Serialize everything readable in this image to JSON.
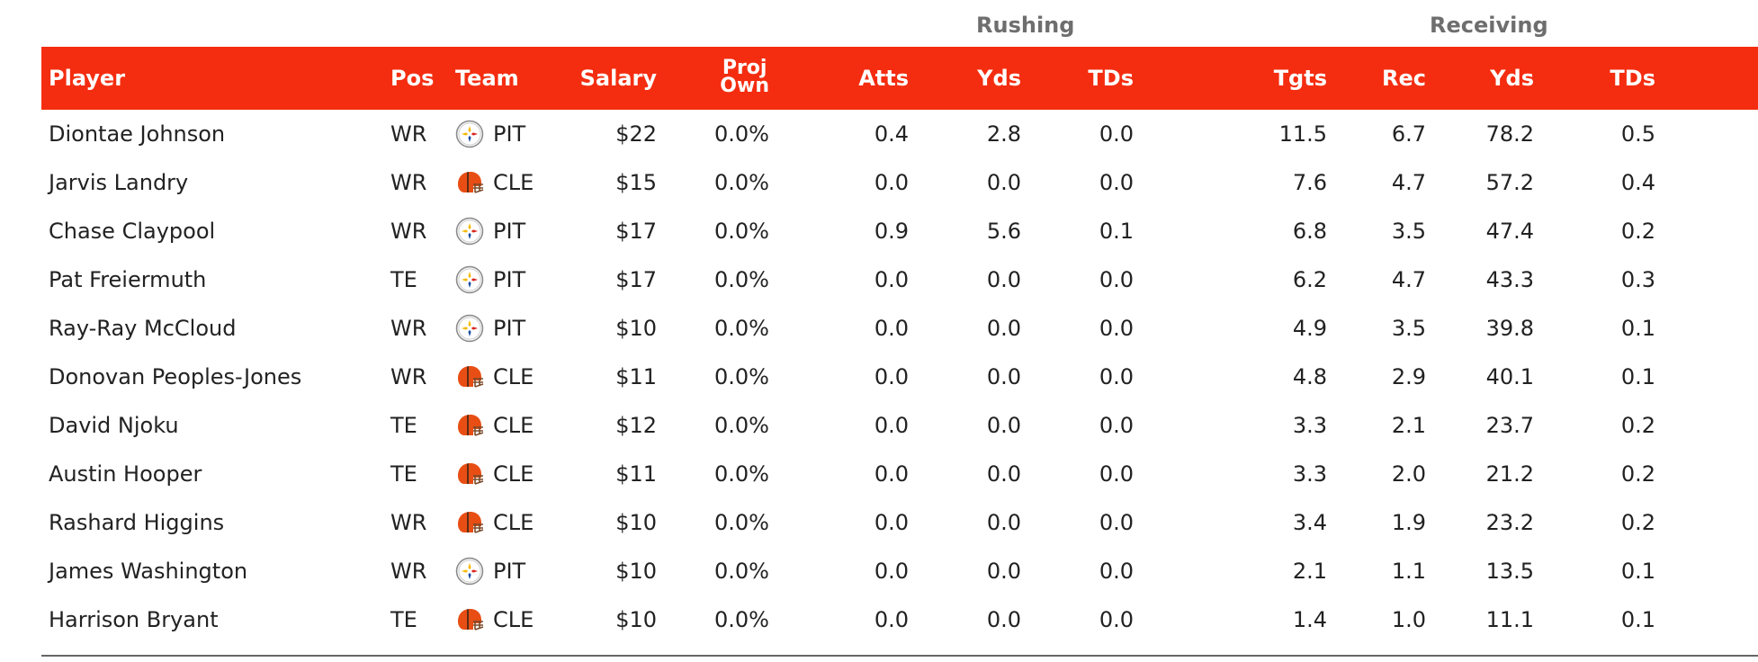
{
  "groups": {
    "rushing": "Rushing",
    "receiving": "Receiving"
  },
  "columns": {
    "player": "Player",
    "pos": "Pos",
    "team": "Team",
    "salary": "Salary",
    "proj_own_line1": "Proj",
    "proj_own_line2": "Own",
    "rush_atts": "Atts",
    "rush_yds": "Yds",
    "rush_tds": "TDs",
    "tgts": "Tgts",
    "rec": "Rec",
    "rec_yds": "Yds",
    "rec_tds": "TDs"
  },
  "colors": {
    "header_bg": "#f42d10",
    "group_label": "#6e6e6e",
    "steelers_logo_bg": "#f2f2f2",
    "browns_helmet": "#e84e14"
  },
  "team_icons": {
    "PIT": "steelers-logo-icon",
    "CLE": "browns-helmet-icon"
  },
  "rows": [
    {
      "player": "Diontae Johnson",
      "pos": "WR",
      "team": "PIT",
      "salary": "$22",
      "proj_own": "0.0%",
      "rush_atts": "0.4",
      "rush_yds": "2.8",
      "rush_tds": "0.0",
      "tgts": "11.5",
      "rec": "6.7",
      "rec_yds": "78.2",
      "rec_tds": "0.5"
    },
    {
      "player": "Jarvis Landry",
      "pos": "WR",
      "team": "CLE",
      "salary": "$15",
      "proj_own": "0.0%",
      "rush_atts": "0.0",
      "rush_yds": "0.0",
      "rush_tds": "0.0",
      "tgts": "7.6",
      "rec": "4.7",
      "rec_yds": "57.2",
      "rec_tds": "0.4"
    },
    {
      "player": "Chase Claypool",
      "pos": "WR",
      "team": "PIT",
      "salary": "$17",
      "proj_own": "0.0%",
      "rush_atts": "0.9",
      "rush_yds": "5.6",
      "rush_tds": "0.1",
      "tgts": "6.8",
      "rec": "3.5",
      "rec_yds": "47.4",
      "rec_tds": "0.2"
    },
    {
      "player": "Pat Freiermuth",
      "pos": "TE",
      "team": "PIT",
      "salary": "$17",
      "proj_own": "0.0%",
      "rush_atts": "0.0",
      "rush_yds": "0.0",
      "rush_tds": "0.0",
      "tgts": "6.2",
      "rec": "4.7",
      "rec_yds": "43.3",
      "rec_tds": "0.3"
    },
    {
      "player": "Ray-Ray McCloud",
      "pos": "WR",
      "team": "PIT",
      "salary": "$10",
      "proj_own": "0.0%",
      "rush_atts": "0.0",
      "rush_yds": "0.0",
      "rush_tds": "0.0",
      "tgts": "4.9",
      "rec": "3.5",
      "rec_yds": "39.8",
      "rec_tds": "0.1"
    },
    {
      "player": "Donovan Peoples-Jones",
      "pos": "WR",
      "team": "CLE",
      "salary": "$11",
      "proj_own": "0.0%",
      "rush_atts": "0.0",
      "rush_yds": "0.0",
      "rush_tds": "0.0",
      "tgts": "4.8",
      "rec": "2.9",
      "rec_yds": "40.1",
      "rec_tds": "0.1"
    },
    {
      "player": "David Njoku",
      "pos": "TE",
      "team": "CLE",
      "salary": "$12",
      "proj_own": "0.0%",
      "rush_atts": "0.0",
      "rush_yds": "0.0",
      "rush_tds": "0.0",
      "tgts": "3.3",
      "rec": "2.1",
      "rec_yds": "23.7",
      "rec_tds": "0.2"
    },
    {
      "player": "Austin Hooper",
      "pos": "TE",
      "team": "CLE",
      "salary": "$11",
      "proj_own": "0.0%",
      "rush_atts": "0.0",
      "rush_yds": "0.0",
      "rush_tds": "0.0",
      "tgts": "3.3",
      "rec": "2.0",
      "rec_yds": "21.2",
      "rec_tds": "0.2"
    },
    {
      "player": "Rashard Higgins",
      "pos": "WR",
      "team": "CLE",
      "salary": "$10",
      "proj_own": "0.0%",
      "rush_atts": "0.0",
      "rush_yds": "0.0",
      "rush_tds": "0.0",
      "tgts": "3.4",
      "rec": "1.9",
      "rec_yds": "23.2",
      "rec_tds": "0.2"
    },
    {
      "player": "James Washington",
      "pos": "WR",
      "team": "PIT",
      "salary": "$10",
      "proj_own": "0.0%",
      "rush_atts": "0.0",
      "rush_yds": "0.0",
      "rush_tds": "0.0",
      "tgts": "2.1",
      "rec": "1.1",
      "rec_yds": "13.5",
      "rec_tds": "0.1"
    },
    {
      "player": "Harrison Bryant",
      "pos": "TE",
      "team": "CLE",
      "salary": "$10",
      "proj_own": "0.0%",
      "rush_atts": "0.0",
      "rush_yds": "0.0",
      "rush_tds": "0.0",
      "tgts": "1.4",
      "rec": "1.0",
      "rec_yds": "11.1",
      "rec_tds": "0.1"
    }
  ]
}
